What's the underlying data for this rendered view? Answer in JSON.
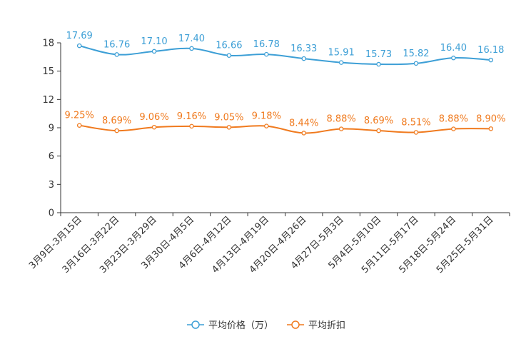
{
  "chart_data": {
    "type": "line",
    "categories": [
      "3月9日-3月15日",
      "3月16日-3月22日",
      "3月23日-3月29日",
      "3月30日-4月5日",
      "4月6日-4月12日",
      "4月13日-4月19日",
      "4月20日-4月26日",
      "4月27日-5月3日",
      "5月4日-5月10日",
      "5月11日-5月17日",
      "5月18日-5月24日",
      "5月25日-5月31日"
    ],
    "ylim": [
      0,
      18
    ],
    "yticks": [
      "0",
      "3",
      "6",
      "9",
      "12",
      "15",
      "18"
    ],
    "series": [
      {
        "name": "平均价格（万）",
        "color": "#3d9fd6",
        "values": [
          17.69,
          16.76,
          17.1,
          17.4,
          16.66,
          16.78,
          16.33,
          15.91,
          15.73,
          15.82,
          16.4,
          16.18
        ],
        "labels": [
          "17.69",
          "16.76",
          "17.10",
          "17.40",
          "16.66",
          "16.78",
          "16.33",
          "15.91",
          "15.73",
          "15.82",
          "16.40",
          "16.18"
        ]
      },
      {
        "name": "平均折扣",
        "color": "#f07a1e",
        "values": [
          9.25,
          8.69,
          9.06,
          9.16,
          9.05,
          9.18,
          8.44,
          8.88,
          8.69,
          8.51,
          8.88,
          8.9
        ],
        "labels": [
          "9.25%",
          "8.69%",
          "9.06%",
          "9.16%",
          "9.05%",
          "9.18%",
          "8.44%",
          "8.88%",
          "8.69%",
          "8.51%",
          "8.88%",
          "8.90%"
        ]
      }
    ],
    "legend": {
      "position": "bottom"
    }
  }
}
